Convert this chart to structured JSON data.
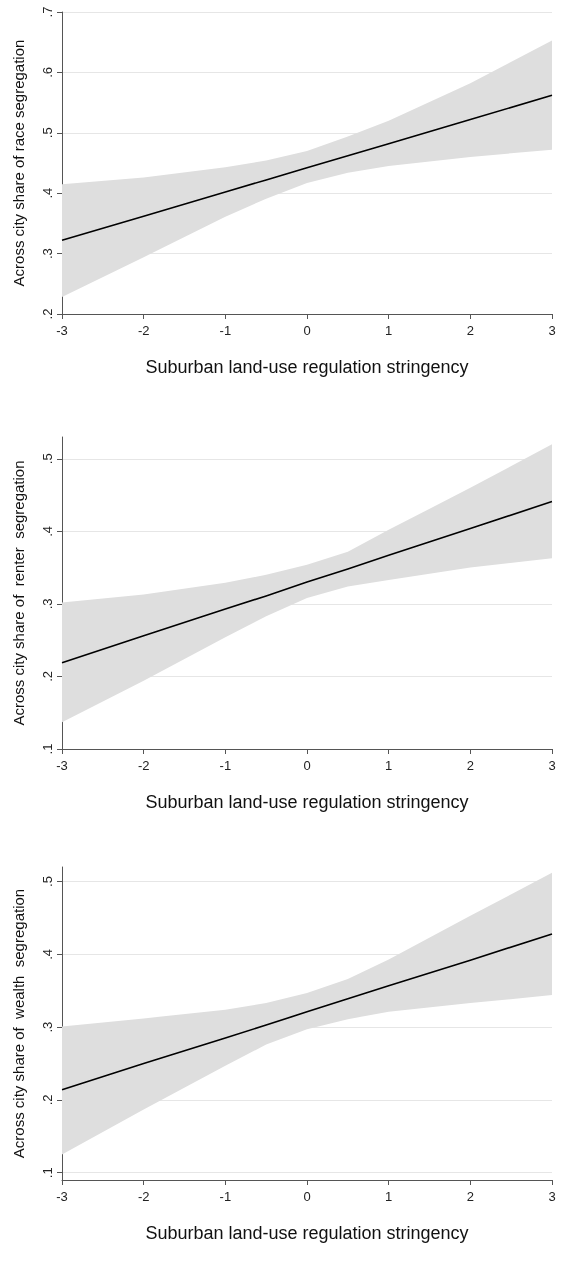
{
  "chart_data": [
    {
      "type": "line",
      "xlabel": "Suburban land-use regulation stringency",
      "ylabel": "Across city share of race segregation",
      "x": [
        -3,
        -2,
        -1,
        -0.5,
        0,
        0.5,
        1,
        2,
        3
      ],
      "xlim": [
        -3,
        3
      ],
      "xticks": [
        -3,
        -2,
        -1,
        0,
        1,
        2,
        3
      ],
      "ylim": [
        0.2,
        0.7
      ],
      "yticks": [
        {
          "value": 0.2,
          "label": ".2"
        },
        {
          "value": 0.3,
          "label": ".3"
        },
        {
          "value": 0.4,
          "label": ".4"
        },
        {
          "value": 0.5,
          "label": ".5"
        },
        {
          "value": 0.6,
          "label": ".6"
        },
        {
          "value": 0.7,
          "label": ".7"
        }
      ],
      "grid": "y",
      "marker": "none",
      "line_style": "solid",
      "series": [
        {
          "color": "#000000",
          "values": [
            0.322,
            0.362,
            0.402,
            0.422,
            0.442,
            0.462,
            0.482,
            0.522,
            0.562
          ],
          "lower": [
            0.228,
            0.294,
            0.361,
            0.391,
            0.417,
            0.434,
            0.445,
            0.46,
            0.472
          ],
          "upper": [
            0.415,
            0.426,
            0.443,
            0.454,
            0.47,
            0.494,
            0.52,
            0.582,
            0.653
          ]
        }
      ]
    },
    {
      "type": "line",
      "xlabel": "Suburban land-use regulation stringency",
      "ylabel": "Across city share of  renter  segregation",
      "x": [
        -3,
        -2,
        -1,
        -0.5,
        0,
        0.5,
        1,
        2,
        3
      ],
      "xlim": [
        -3,
        3
      ],
      "xticks": [
        -3,
        -2,
        -1,
        0,
        1,
        2,
        3
      ],
      "ylim": [
        0.1,
        0.53
      ],
      "yticks": [
        {
          "value": 0.1,
          "label": ".1"
        },
        {
          "value": 0.2,
          "label": ".2"
        },
        {
          "value": 0.3,
          "label": ".3"
        },
        {
          "value": 0.4,
          "label": ".4"
        },
        {
          "value": 0.5,
          "label": ".5"
        }
      ],
      "grid": "y",
      "marker": "none",
      "line_style": "solid",
      "series": [
        {
          "color": "#000000",
          "values": [
            0.219,
            0.256,
            0.293,
            0.311,
            0.33,
            0.348,
            0.367,
            0.404,
            0.441
          ],
          "lower": [
            0.137,
            0.194,
            0.254,
            0.283,
            0.308,
            0.324,
            0.333,
            0.35,
            0.363
          ],
          "upper": [
            0.302,
            0.313,
            0.329,
            0.34,
            0.354,
            0.372,
            0.402,
            0.46,
            0.52
          ]
        }
      ]
    },
    {
      "type": "line",
      "xlabel": "Suburban land-use regulation stringency",
      "ylabel": "Across city share of  wealth  segregation",
      "x": [
        -3,
        -2,
        -1,
        -0.5,
        0,
        0.5,
        1,
        2,
        3
      ],
      "xlim": [
        -3,
        3
      ],
      "xticks": [
        -3,
        -2,
        -1,
        0,
        1,
        2,
        3
      ],
      "ylim": [
        0.09,
        0.52
      ],
      "yticks": [
        {
          "value": 0.1,
          "label": ".1"
        },
        {
          "value": 0.2,
          "label": ".2"
        },
        {
          "value": 0.3,
          "label": ".3"
        },
        {
          "value": 0.4,
          "label": ".4"
        },
        {
          "value": 0.5,
          "label": ".5"
        }
      ],
      "grid": "y",
      "marker": "none",
      "line_style": "solid",
      "series": [
        {
          "color": "#000000",
          "values": [
            0.214,
            0.25,
            0.285,
            0.303,
            0.321,
            0.339,
            0.357,
            0.392,
            0.428
          ],
          "lower": [
            0.125,
            0.187,
            0.247,
            0.276,
            0.297,
            0.311,
            0.321,
            0.333,
            0.344
          ],
          "upper": [
            0.301,
            0.312,
            0.324,
            0.333,
            0.347,
            0.366,
            0.393,
            0.453,
            0.512
          ]
        }
      ]
    }
  ]
}
